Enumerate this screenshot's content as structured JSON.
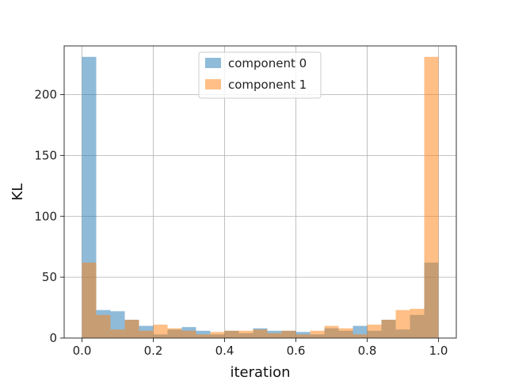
{
  "chart_data": {
    "type": "bar",
    "xlabel": "iteration",
    "ylabel": "KL",
    "xlim": [
      -0.05,
      1.05
    ],
    "ylim": [
      0,
      240
    ],
    "xticks": [
      "0.0",
      "0.2",
      "0.4",
      "0.6",
      "0.8",
      "1.0"
    ],
    "yticks": [
      "0",
      "50",
      "100",
      "150",
      "200"
    ],
    "grid": true,
    "legend_position": "top-center",
    "bin_edges": [
      0.0,
      0.04,
      0.08,
      0.12,
      0.16,
      0.2,
      0.24,
      0.28,
      0.32,
      0.36,
      0.4,
      0.44,
      0.48,
      0.52,
      0.56,
      0.6,
      0.64,
      0.68,
      0.72,
      0.76,
      0.8,
      0.84,
      0.88,
      0.92,
      0.96,
      1.0
    ],
    "series": [
      {
        "name": "component 0",
        "color": "#1f77b4",
        "values": [
          231,
          23,
          22,
          15,
          10,
          3,
          7,
          9,
          6,
          3,
          6,
          4,
          8,
          6,
          6,
          5,
          3,
          8,
          6,
          10,
          6,
          15,
          7,
          19,
          62
        ]
      },
      {
        "name": "component 1",
        "color": "#ff7f0e",
        "values": [
          62,
          19,
          7,
          15,
          6,
          11,
          8,
          6,
          3,
          5,
          6,
          6,
          7,
          4,
          6,
          3,
          6,
          10,
          8,
          3,
          11,
          15,
          23,
          24,
          231
        ]
      }
    ],
    "alpha": 0.5
  }
}
